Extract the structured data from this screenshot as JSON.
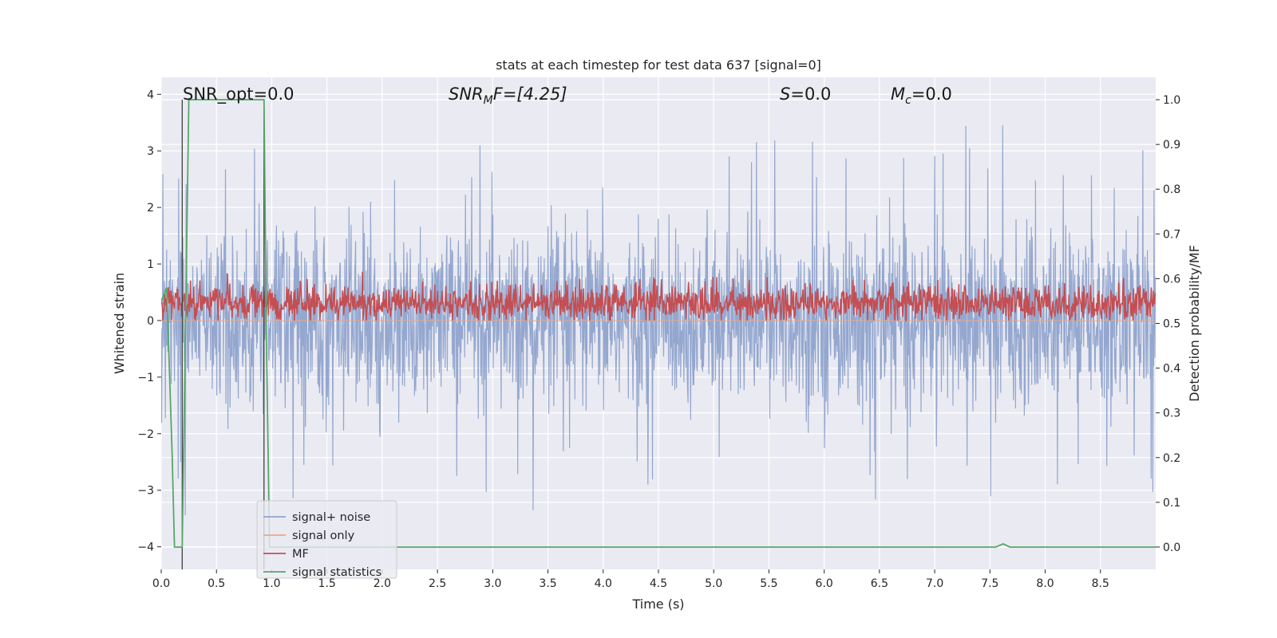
{
  "chart_data": {
    "type": "line",
    "title": "stats at each timestep for test data 637 [signal=0]",
    "xlabel": "Time (s)",
    "ylabel": "Whitened strain",
    "y2label": "Detection probability/MF",
    "xlim": [
      0.0,
      9.0
    ],
    "ylim": [
      -4.4,
      4.3
    ],
    "y2lim": [
      -0.05,
      1.05
    ],
    "xticks": [
      0.0,
      0.5,
      1.0,
      1.5,
      2.0,
      2.5,
      3.0,
      3.5,
      4.0,
      4.5,
      5.0,
      5.5,
      6.0,
      6.5,
      7.0,
      7.5,
      8.0,
      8.5
    ],
    "xtick_labels": [
      "0.0",
      "0.5",
      "1.0",
      "1.5",
      "2.0",
      "2.5",
      "3.0",
      "3.5",
      "4.0",
      "4.5",
      "5.0",
      "5.5",
      "6.0",
      "6.5",
      "7.0",
      "7.5",
      "8.0",
      "8.5"
    ],
    "yticks": [
      -4,
      -3,
      -2,
      -1,
      0,
      1,
      2,
      3,
      4
    ],
    "ytick_labels": [
      "−4",
      "−3",
      "−2",
      "−1",
      "0",
      "1",
      "2",
      "3",
      "4"
    ],
    "y2ticks": [
      0.0,
      0.1,
      0.2,
      0.3,
      0.4,
      0.5,
      0.6,
      0.7,
      0.8,
      0.9,
      1.0
    ],
    "y2tick_labels": [
      "0.0",
      "0.1",
      "0.2",
      "0.3",
      "0.4",
      "0.5",
      "0.6",
      "0.7",
      "0.8",
      "0.9",
      "1.0"
    ],
    "grid": true,
    "legend_position": "lower-left",
    "annotations": {
      "snr_opt": "SNR_opt=0.0",
      "snr_mf_prefix": "SNR",
      "snr_mf_sub": "M",
      "snr_mf_suffix": "F=[4.25]",
      "s_prefix": "S",
      "s_suffix": "=0.0",
      "mc_prefix": "M",
      "mc_sub": "c",
      "mc_suffix": "=0.0"
    },
    "series": [
      {
        "name": "signal+ noise",
        "color": "#8fa3cc",
        "description_axis": "left",
        "noise_amplitude_y": 1.6,
        "peak_max_y": 3.9,
        "peak_min_y": -4.05
      },
      {
        "name": "signal only",
        "color": "#e8a98a",
        "axis": "left",
        "values_constant": 0.0
      },
      {
        "name": "MF",
        "color": "#c44e52",
        "axis": "left",
        "min_y": 0.0,
        "max_y": 1.0
      },
      {
        "name": "signal statistics",
        "color": "#55a868",
        "axis": "right",
        "x": [
          0.0,
          0.05,
          0.1,
          0.12,
          0.19,
          0.25,
          0.93,
          0.95,
          0.98,
          1.0,
          7.55,
          7.62,
          7.68,
          9.0
        ],
        "y": [
          0.55,
          0.58,
          0.2,
          0.0,
          0.0,
          1.0,
          1.0,
          0.5,
          0.0,
          0.0,
          0.0,
          0.007,
          0.0,
          0.0
        ]
      }
    ],
    "vertical_markers": [
      {
        "x": 0.19,
        "color": "#404040"
      },
      {
        "x": 0.93,
        "color": "#404040"
      }
    ]
  }
}
